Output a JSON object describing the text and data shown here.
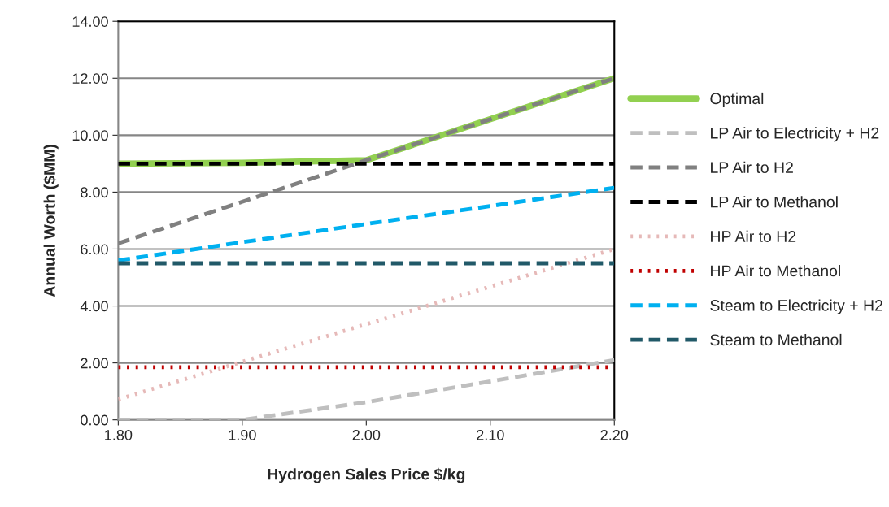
{
  "chart_data": {
    "type": "line",
    "xlabel": "Hydrogen Sales Price $/kg",
    "ylabel": "Annual Worth ($MM)",
    "x": [
      1.8,
      1.9,
      2.0,
      2.1,
      2.2
    ],
    "series": [
      {
        "name": "Optimal",
        "color": "#92d050",
        "line_style": "solid",
        "values": [
          9.0,
          9.03,
          9.12,
          10.56,
          12.0
        ]
      },
      {
        "name": "LP Air to Electricity + H2",
        "color": "#bfbfbf",
        "line_style": "dashed",
        "values": [
          0.0,
          0.0,
          0.62,
          1.35,
          2.1
        ]
      },
      {
        "name": "LP Air to H2",
        "color": "#808080",
        "line_style": "dashed",
        "values": [
          6.2,
          7.66,
          9.12,
          10.56,
          12.0
        ]
      },
      {
        "name": "LP Air to Methanol",
        "color": "#000000",
        "line_style": "dashed",
        "values": [
          9.0,
          9.0,
          9.0,
          9.0,
          9.0
        ]
      },
      {
        "name": "HP Air to H2",
        "color": "#e6b9b8",
        "line_style": "dotted",
        "values": [
          0.72,
          2.04,
          3.36,
          4.68,
          6.0
        ]
      },
      {
        "name": "HP Air to Methanol",
        "color": "#c00000",
        "line_style": "dotted",
        "values": [
          1.85,
          1.85,
          1.85,
          1.85,
          1.85
        ]
      },
      {
        "name": "Steam to Electricity + H2",
        "color": "#00b0f0",
        "line_style": "dashed",
        "values": [
          5.6,
          6.24,
          6.88,
          7.51,
          8.15
        ]
      },
      {
        "name": "Steam to Methanol",
        "color": "#215968",
        "line_style": "dashed",
        "values": [
          5.5,
          5.5,
          5.5,
          5.5,
          5.5
        ]
      }
    ],
    "xlim": [
      1.8,
      2.2
    ],
    "xticks": [
      {
        "value": 1.8,
        "label": "1.80"
      },
      {
        "value": 1.9,
        "label": "1.90"
      },
      {
        "value": 2.0,
        "label": "2.00"
      },
      {
        "value": 2.1,
        "label": "2.10"
      },
      {
        "value": 2.2,
        "label": "2.20"
      }
    ],
    "ylim": [
      0,
      14
    ],
    "yticks": [
      {
        "value": 0,
        "label": "0.00"
      },
      {
        "value": 2,
        "label": "2.00"
      },
      {
        "value": 4,
        "label": "4.00"
      },
      {
        "value": 6,
        "label": "6.00"
      },
      {
        "value": 8,
        "label": "8.00"
      },
      {
        "value": 10,
        "label": "10.00"
      },
      {
        "value": 12,
        "label": "12.00"
      },
      {
        "value": 14,
        "label": "14.00"
      }
    ],
    "grid": "y",
    "legend": "right",
    "marker": "none"
  }
}
